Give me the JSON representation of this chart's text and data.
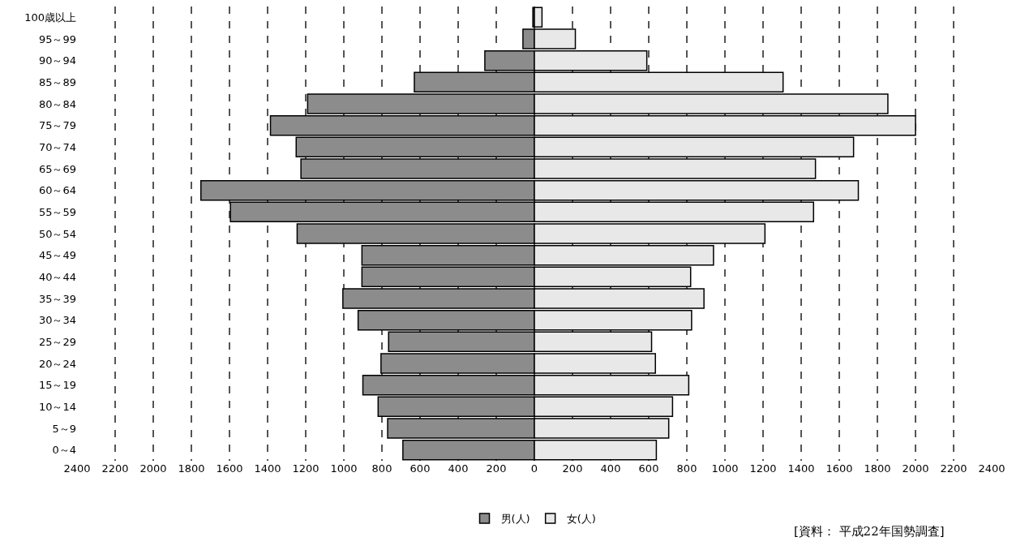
{
  "chart_data": {
    "type": "bar",
    "orientation": "horizontal",
    "stacked": true,
    "categories": [
      "100歳以上",
      "95～99",
      "90～94",
      "85～89",
      "80～84",
      "75～79",
      "70～74",
      "65～69",
      "60～64",
      "55～59",
      "50～54",
      "45～49",
      "40～44",
      "35～39",
      "30～34",
      "25～29",
      "20～24",
      "15～19",
      "10～14",
      "5～9",
      "0～4"
    ],
    "series": [
      {
        "name": "男(人)",
        "color": "#8c8c8c",
        "values": [
          -8,
          -60,
          -260,
          -630,
          -1190,
          -1385,
          -1250,
          -1225,
          -1750,
          -1595,
          -1245,
          -905,
          -905,
          -1005,
          -925,
          -765,
          -805,
          -900,
          -820,
          -770,
          -690
        ]
      },
      {
        "name": "女(人)",
        "color": "#e8e8e8",
        "values": [
          40,
          215,
          590,
          1305,
          1855,
          2000,
          1675,
          1475,
          1700,
          1465,
          1210,
          940,
          820,
          890,
          825,
          615,
          635,
          810,
          725,
          705,
          640
        ]
      }
    ],
    "xlim": [
      -2400,
      2400
    ],
    "xticks": [
      {
        "value": -2400,
        "label": "2400"
      },
      {
        "value": -2200,
        "label": "2200"
      },
      {
        "value": -2000,
        "label": "2000"
      },
      {
        "value": -1800,
        "label": "1800"
      },
      {
        "value": -1600,
        "label": "1600"
      },
      {
        "value": -1400,
        "label": "1400"
      },
      {
        "value": -1200,
        "label": "1200"
      },
      {
        "value": -1000,
        "label": "1000"
      },
      {
        "value": -800,
        "label": "800"
      },
      {
        "value": -600,
        "label": "600"
      },
      {
        "value": -400,
        "label": "400"
      },
      {
        "value": -200,
        "label": "200"
      },
      0,
      200,
      400,
      600,
      800,
      1000,
      1200,
      1400,
      1600,
      1800,
      2000,
      2200,
      2400
    ],
    "grid": "x",
    "line_style": "dashed",
    "legend": "bottom",
    "annotations": [
      "[資料： 平成22年国勢調査]"
    ]
  }
}
